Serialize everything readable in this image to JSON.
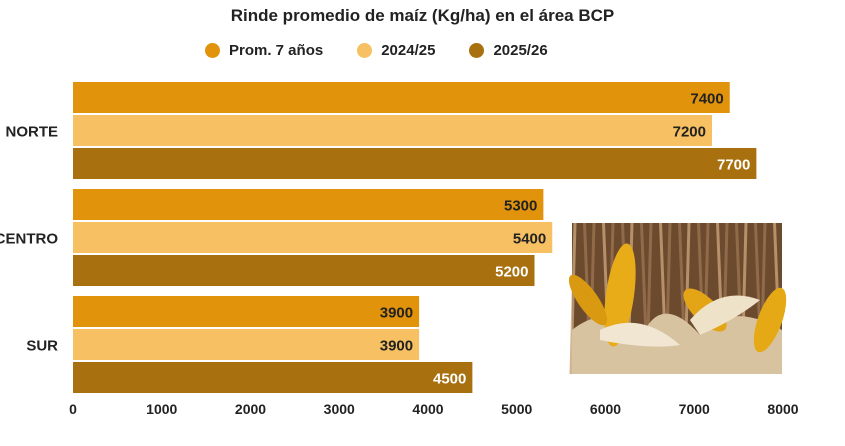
{
  "chart_data": {
    "type": "bar",
    "orientation": "horizontal",
    "title": "Rinde promedio de maíz (Kg/ha) en el área BCP",
    "categories": [
      "NORTE",
      "CENTRO",
      "SUR"
    ],
    "series": [
      {
        "name": "Prom. 7 años",
        "color": "#E0930B",
        "values": [
          7400,
          5300,
          3900
        ]
      },
      {
        "name": "2024/25",
        "color": "#F7C062",
        "values": [
          7200,
          5400,
          3900
        ]
      },
      {
        "name": "2025/26",
        "color": "#A8700F",
        "values": [
          7700,
          5200,
          4500
        ]
      }
    ],
    "xlim": [
      0,
      8000
    ],
    "xticks": [
      "0",
      "1000",
      "2000",
      "3000",
      "4000",
      "5000",
      "6000",
      "7000",
      "8000"
    ],
    "xticklabels": [
      "0",
      "1000",
      "2000",
      "3000",
      "4000",
      "5000",
      "6000",
      "7000",
      "8000"
    ],
    "data_labels": true,
    "legend_position": "top",
    "grid": false,
    "xlabel": "",
    "ylabel": ""
  }
}
